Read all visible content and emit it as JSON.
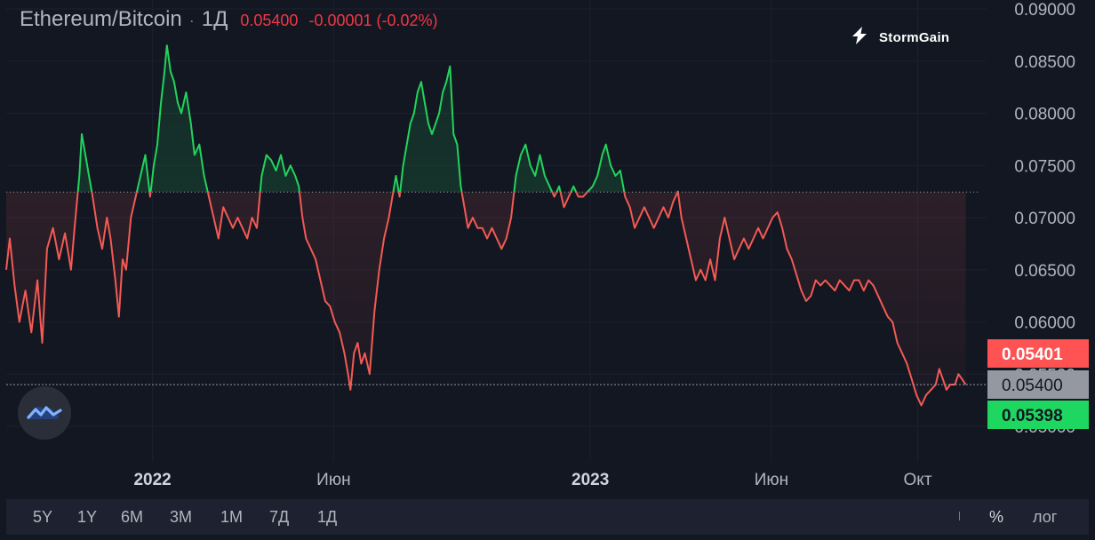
{
  "header": {
    "symbol": "Ethereum/Bitcoin",
    "separator": "·",
    "interval": "1Д",
    "last_price": "0.05400",
    "change": "-0.00001 (-0.02%)"
  },
  "brand": {
    "name": "StormGain"
  },
  "bottom_bar": {
    "ranges": [
      "5Y",
      "1Y",
      "6M",
      "3M",
      "1M",
      "7Д",
      "1Д"
    ],
    "percent": "%",
    "log": "лог"
  },
  "colors": {
    "background": "#131722",
    "up": "#22d35d",
    "down": "#f25a54",
    "ask_label": "#ff5252",
    "bid_label": "#1ed760",
    "last_label": "#9598a1"
  },
  "chart_data": {
    "type": "line",
    "title": "Ethereum/Bitcoin",
    "xlabel": "",
    "ylabel": "",
    "baseline": 0.07245,
    "ylim": [
      0.0496,
      0.09
    ],
    "y_ticks": [
      "0.09000",
      "0.08500",
      "0.08000",
      "0.07500",
      "0.07000",
      "0.06500",
      "0.06000",
      "0.05500",
      "0.05000"
    ],
    "x_ticks": [
      {
        "label": "2022",
        "date": "2022-01-01",
        "bold": true
      },
      {
        "label": "Июн",
        "date": "2022-06-01",
        "bold": false
      },
      {
        "label": "2023",
        "date": "2023-01-01",
        "bold": true
      },
      {
        "label": "Июн",
        "date": "2023-06-01",
        "bold": false
      },
      {
        "label": "Окт",
        "date": "2023-10-01",
        "bold": false
      }
    ],
    "x_range": [
      "2021-09-01",
      "2023-11-20"
    ],
    "price_labels": [
      {
        "text": "0.05401",
        "value": 0.05401,
        "role": "ask"
      },
      {
        "text": "0.05400",
        "value": 0.054,
        "role": "last"
      },
      {
        "text": "0.05398",
        "value": 0.05398,
        "role": "bid"
      }
    ],
    "series": [
      {
        "points": [
          [
            "2021-09-01",
            0.065
          ],
          [
            "2021-09-04",
            0.068
          ],
          [
            "2021-09-08",
            0.0635
          ],
          [
            "2021-09-12",
            0.06
          ],
          [
            "2021-09-17",
            0.063
          ],
          [
            "2021-09-22",
            0.059
          ],
          [
            "2021-09-27",
            0.064
          ],
          [
            "2021-10-01",
            0.058
          ],
          [
            "2021-10-05",
            0.067
          ],
          [
            "2021-10-10",
            0.069
          ],
          [
            "2021-10-15",
            0.066
          ],
          [
            "2021-10-20",
            0.0685
          ],
          [
            "2021-10-25",
            0.065
          ],
          [
            "2021-10-28",
            0.069
          ],
          [
            "2021-11-01",
            0.074
          ],
          [
            "2021-11-03",
            0.078
          ],
          [
            "2021-11-06",
            0.076
          ],
          [
            "2021-11-09",
            0.074
          ],
          [
            "2021-11-12",
            0.072
          ],
          [
            "2021-11-16",
            0.069
          ],
          [
            "2021-11-20",
            0.067
          ],
          [
            "2021-11-24",
            0.07
          ],
          [
            "2021-11-27",
            0.068
          ],
          [
            "2021-12-01",
            0.064
          ],
          [
            "2021-12-04",
            0.0605
          ],
          [
            "2021-12-07",
            0.066
          ],
          [
            "2021-12-10",
            0.065
          ],
          [
            "2021-12-14",
            0.07
          ],
          [
            "2021-12-18",
            0.072
          ],
          [
            "2021-12-22",
            0.074
          ],
          [
            "2021-12-26",
            0.076
          ],
          [
            "2021-12-30",
            0.072
          ],
          [
            "2022-01-02",
            0.075
          ],
          [
            "2022-01-05",
            0.077
          ],
          [
            "2022-01-08",
            0.081
          ],
          [
            "2022-01-11",
            0.084
          ],
          [
            "2022-01-13",
            0.0865
          ],
          [
            "2022-01-16",
            0.084
          ],
          [
            "2022-01-19",
            0.083
          ],
          [
            "2022-01-22",
            0.081
          ],
          [
            "2022-01-25",
            0.08
          ],
          [
            "2022-01-29",
            0.082
          ],
          [
            "2022-02-02",
            0.079
          ],
          [
            "2022-02-05",
            0.076
          ],
          [
            "2022-02-09",
            0.077
          ],
          [
            "2022-02-13",
            0.074
          ],
          [
            "2022-02-17",
            0.072
          ],
          [
            "2022-02-21",
            0.07
          ],
          [
            "2022-02-25",
            0.068
          ],
          [
            "2022-03-01",
            0.071
          ],
          [
            "2022-03-05",
            0.07
          ],
          [
            "2022-03-09",
            0.069
          ],
          [
            "2022-03-13",
            0.07
          ],
          [
            "2022-03-17",
            0.069
          ],
          [
            "2022-03-21",
            0.068
          ],
          [
            "2022-03-25",
            0.07
          ],
          [
            "2022-03-29",
            0.069
          ],
          [
            "2022-04-02",
            0.074
          ],
          [
            "2022-04-06",
            0.076
          ],
          [
            "2022-04-10",
            0.0755
          ],
          [
            "2022-04-14",
            0.0745
          ],
          [
            "2022-04-18",
            0.076
          ],
          [
            "2022-04-22",
            0.074
          ],
          [
            "2022-04-26",
            0.075
          ],
          [
            "2022-04-30",
            0.074
          ],
          [
            "2022-05-03",
            0.073
          ],
          [
            "2022-05-06",
            0.07
          ],
          [
            "2022-05-09",
            0.068
          ],
          [
            "2022-05-13",
            0.067
          ],
          [
            "2022-05-17",
            0.066
          ],
          [
            "2022-05-21",
            0.064
          ],
          [
            "2022-05-25",
            0.062
          ],
          [
            "2022-05-29",
            0.0615
          ],
          [
            "2022-06-02",
            0.06
          ],
          [
            "2022-06-06",
            0.059
          ],
          [
            "2022-06-10",
            0.057
          ],
          [
            "2022-06-13",
            0.055
          ],
          [
            "2022-06-15",
            0.0535
          ],
          [
            "2022-06-18",
            0.057
          ],
          [
            "2022-06-21",
            0.058
          ],
          [
            "2022-06-24",
            0.056
          ],
          [
            "2022-06-27",
            0.057
          ],
          [
            "2022-07-01",
            0.055
          ],
          [
            "2022-07-05",
            0.061
          ],
          [
            "2022-07-09",
            0.065
          ],
          [
            "2022-07-13",
            0.068
          ],
          [
            "2022-07-17",
            0.07
          ],
          [
            "2022-07-20",
            0.072
          ],
          [
            "2022-07-23",
            0.074
          ],
          [
            "2022-07-26",
            0.072
          ],
          [
            "2022-07-29",
            0.075
          ],
          [
            "2022-08-01",
            0.077
          ],
          [
            "2022-08-04",
            0.079
          ],
          [
            "2022-08-07",
            0.08
          ],
          [
            "2022-08-10",
            0.082
          ],
          [
            "2022-08-13",
            0.083
          ],
          [
            "2022-08-16",
            0.081
          ],
          [
            "2022-08-19",
            0.079
          ],
          [
            "2022-08-22",
            0.078
          ],
          [
            "2022-08-25",
            0.079
          ],
          [
            "2022-08-28",
            0.08
          ],
          [
            "2022-08-31",
            0.082
          ],
          [
            "2022-09-03",
            0.083
          ],
          [
            "2022-09-06",
            0.0845
          ],
          [
            "2022-09-09",
            0.078
          ],
          [
            "2022-09-12",
            0.077
          ],
          [
            "2022-09-15",
            0.073
          ],
          [
            "2022-09-18",
            0.071
          ],
          [
            "2022-09-21",
            0.069
          ],
          [
            "2022-09-25",
            0.07
          ],
          [
            "2022-09-29",
            0.069
          ],
          [
            "2022-10-03",
            0.069
          ],
          [
            "2022-10-07",
            0.068
          ],
          [
            "2022-10-11",
            0.069
          ],
          [
            "2022-10-15",
            0.068
          ],
          [
            "2022-10-19",
            0.067
          ],
          [
            "2022-10-23",
            0.068
          ],
          [
            "2022-10-27",
            0.07
          ],
          [
            "2022-10-31",
            0.074
          ],
          [
            "2022-11-04",
            0.076
          ],
          [
            "2022-11-08",
            0.077
          ],
          [
            "2022-11-12",
            0.075
          ],
          [
            "2022-11-16",
            0.074
          ],
          [
            "2022-11-20",
            0.076
          ],
          [
            "2022-11-24",
            0.074
          ],
          [
            "2022-11-28",
            0.073
          ],
          [
            "2022-12-02",
            0.072
          ],
          [
            "2022-12-06",
            0.073
          ],
          [
            "2022-12-10",
            0.071
          ],
          [
            "2022-12-14",
            0.072
          ],
          [
            "2022-12-18",
            0.073
          ],
          [
            "2022-12-22",
            0.072
          ],
          [
            "2022-12-26",
            0.072
          ],
          [
            "2022-12-30",
            0.0725
          ],
          [
            "2023-01-03",
            0.073
          ],
          [
            "2023-01-07",
            0.074
          ],
          [
            "2023-01-11",
            0.076
          ],
          [
            "2023-01-14",
            0.077
          ],
          [
            "2023-01-18",
            0.075
          ],
          [
            "2023-01-22",
            0.074
          ],
          [
            "2023-01-26",
            0.0745
          ],
          [
            "2023-01-30",
            0.072
          ],
          [
            "2023-02-03",
            0.071
          ],
          [
            "2023-02-07",
            0.069
          ],
          [
            "2023-02-11",
            0.07
          ],
          [
            "2023-02-15",
            0.071
          ],
          [
            "2023-02-19",
            0.07
          ],
          [
            "2023-02-23",
            0.069
          ],
          [
            "2023-02-27",
            0.07
          ],
          [
            "2023-03-03",
            0.071
          ],
          [
            "2023-03-07",
            0.07
          ],
          [
            "2023-03-11",
            0.0715
          ],
          [
            "2023-03-15",
            0.0725
          ],
          [
            "2023-03-18",
            0.07
          ],
          [
            "2023-03-22",
            0.068
          ],
          [
            "2023-03-26",
            0.066
          ],
          [
            "2023-03-30",
            0.064
          ],
          [
            "2023-04-03",
            0.065
          ],
          [
            "2023-04-07",
            0.064
          ],
          [
            "2023-04-11",
            0.066
          ],
          [
            "2023-04-15",
            0.064
          ],
          [
            "2023-04-19",
            0.068
          ],
          [
            "2023-04-23",
            0.07
          ],
          [
            "2023-04-27",
            0.068
          ],
          [
            "2023-05-01",
            0.066
          ],
          [
            "2023-05-05",
            0.067
          ],
          [
            "2023-05-09",
            0.068
          ],
          [
            "2023-05-13",
            0.067
          ],
          [
            "2023-05-17",
            0.068
          ],
          [
            "2023-05-21",
            0.069
          ],
          [
            "2023-05-25",
            0.068
          ],
          [
            "2023-05-29",
            0.069
          ],
          [
            "2023-06-02",
            0.07
          ],
          [
            "2023-06-06",
            0.0705
          ],
          [
            "2023-06-10",
            0.069
          ],
          [
            "2023-06-14",
            0.067
          ],
          [
            "2023-06-18",
            0.066
          ],
          [
            "2023-06-22",
            0.0645
          ],
          [
            "2023-06-26",
            0.063
          ],
          [
            "2023-06-30",
            0.062
          ],
          [
            "2023-07-04",
            0.0625
          ],
          [
            "2023-07-08",
            0.064
          ],
          [
            "2023-07-12",
            0.0635
          ],
          [
            "2023-07-16",
            0.064
          ],
          [
            "2023-07-20",
            0.0635
          ],
          [
            "2023-07-24",
            0.063
          ],
          [
            "2023-07-28",
            0.064
          ],
          [
            "2023-08-01",
            0.0635
          ],
          [
            "2023-08-05",
            0.063
          ],
          [
            "2023-08-09",
            0.064
          ],
          [
            "2023-08-13",
            0.064
          ],
          [
            "2023-08-17",
            0.063
          ],
          [
            "2023-08-21",
            0.064
          ],
          [
            "2023-08-25",
            0.0635
          ],
          [
            "2023-08-29",
            0.0625
          ],
          [
            "2023-09-02",
            0.0615
          ],
          [
            "2023-09-06",
            0.0605
          ],
          [
            "2023-09-10",
            0.06
          ],
          [
            "2023-09-14",
            0.058
          ],
          [
            "2023-09-18",
            0.057
          ],
          [
            "2023-09-22",
            0.056
          ],
          [
            "2023-09-26",
            0.0545
          ],
          [
            "2023-09-30",
            0.053
          ],
          [
            "2023-10-04",
            0.052
          ],
          [
            "2023-10-08",
            0.053
          ],
          [
            "2023-10-12",
            0.0535
          ],
          [
            "2023-10-16",
            0.054
          ],
          [
            "2023-10-19",
            0.0555
          ],
          [
            "2023-10-22",
            0.0545
          ],
          [
            "2023-10-25",
            0.0535
          ],
          [
            "2023-10-28",
            0.054
          ],
          [
            "2023-11-01",
            0.054
          ],
          [
            "2023-11-04",
            0.055
          ],
          [
            "2023-11-07",
            0.0545
          ],
          [
            "2023-11-10",
            0.054
          ]
        ]
      }
    ]
  }
}
